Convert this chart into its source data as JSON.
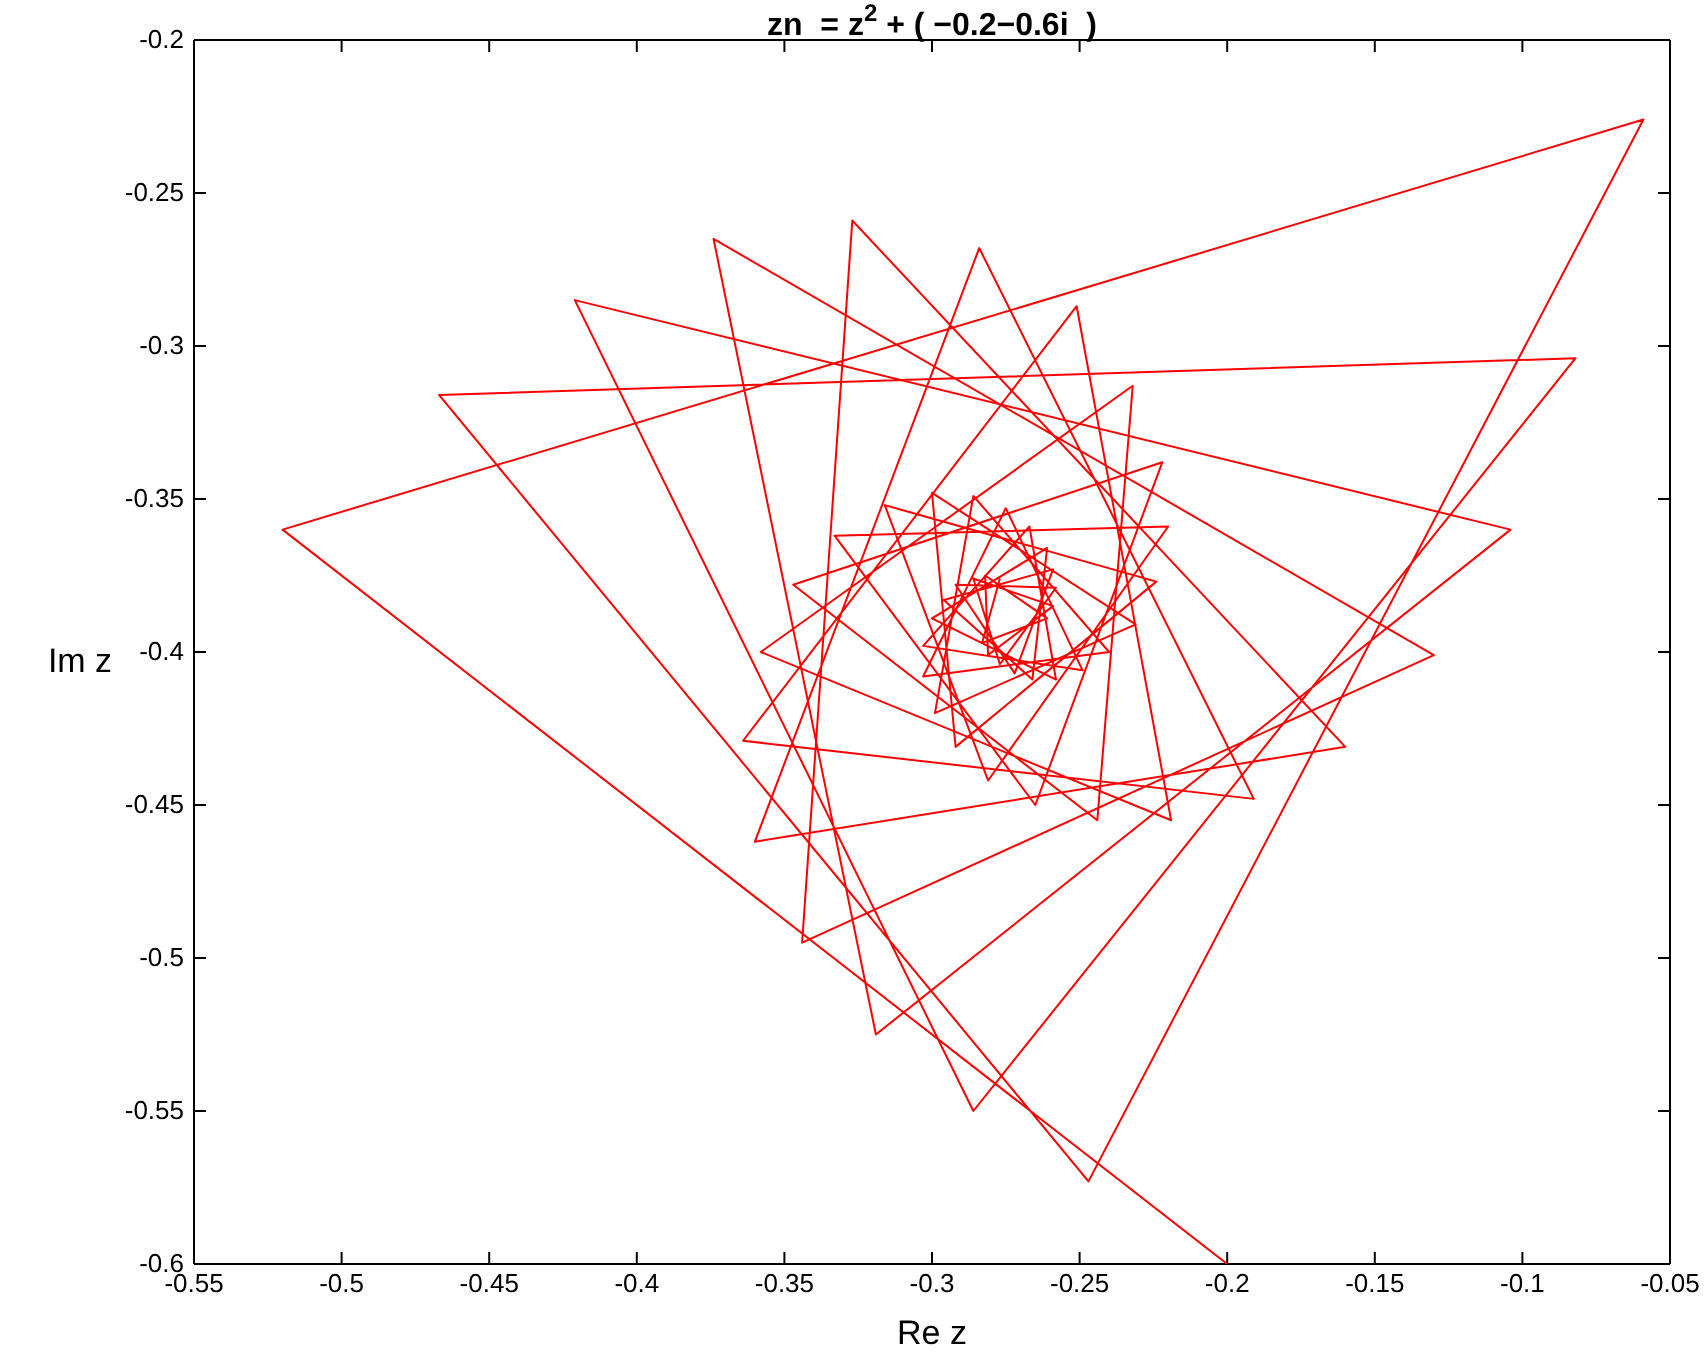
{
  "chart_data": {
    "type": "line",
    "title": "zn  = z$^{2}$ + ( −0.2−0.6i  )",
    "xlabel": "Re z",
    "ylabel": "Im z",
    "xlim": [
      -0.55,
      -0.05
    ],
    "xticks": [
      -0.55,
      -0.5,
      -0.45,
      -0.4,
      -0.35,
      -0.3,
      -0.25,
      -0.2,
      -0.15,
      -0.1,
      -0.05
    ],
    "ylim": [
      -0.6,
      -0.2
    ],
    "yticks": [
      -0.6,
      -0.55,
      -0.5,
      -0.45,
      -0.4,
      -0.35,
      -0.3,
      -0.25,
      -0.2
    ],
    "marker": "none",
    "line_style": "solid",
    "series": [
      {
        "color": "#ff0000",
        "x": [
          -0.2,
          -0.52,
          -0.059,
          -0.247,
          -0.467,
          -0.082,
          -0.286,
          -0.421,
          -0.104,
          -0.319,
          -0.374,
          -0.13,
          -0.344,
          -0.327,
          -0.16,
          -0.36,
          -0.284,
          -0.191,
          -0.364,
          -0.251,
          -0.219,
          -0.358,
          -0.232,
          -0.244,
          -0.347,
          -0.222,
          -0.265,
          -0.333,
          -0.22,
          -0.281,
          -0.316,
          -0.224,
          -0.292,
          -0.3,
          -0.231,
          -0.299,
          -0.286,
          -0.24,
          -0.303,
          -0.275,
          -0.249,
          -0.303,
          -0.267,
          -0.258,
          -0.3,
          -0.261,
          -0.266,
          -0.296,
          -0.259,
          -0.272,
          -0.292,
          -0.258,
          -0.277,
          -0.286,
          -0.259,
          -0.281,
          -0.282,
          -0.261,
          -0.283,
          -0.277
        ],
        "values": [
          -0.6,
          -0.36,
          -0.226,
          -0.573,
          -0.316,
          -0.304,
          -0.55,
          -0.285,
          -0.36,
          -0.525,
          -0.265,
          -0.401,
          -0.495,
          -0.259,
          -0.431,
          -0.462,
          -0.268,
          -0.448,
          -0.429,
          -0.287,
          -0.455,
          -0.4,
          -0.313,
          -0.455,
          -0.378,
          -0.338,
          -0.45,
          -0.362,
          -0.359,
          -0.442,
          -0.352,
          -0.377,
          -0.431,
          -0.348,
          -0.391,
          -0.42,
          -0.349,
          -0.4,
          -0.408,
          -0.353,
          -0.406,
          -0.398,
          -0.359,
          -0.409,
          -0.389,
          -0.366,
          -0.409,
          -0.383,
          -0.373,
          -0.407,
          -0.378,
          -0.379,
          -0.404,
          -0.376,
          -0.385,
          -0.401,
          -0.375,
          -0.389,
          -0.397,
          -0.376
        ]
      }
    ]
  }
}
